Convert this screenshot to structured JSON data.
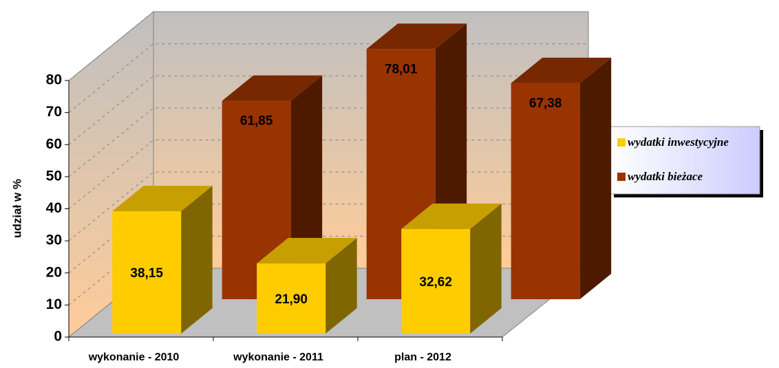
{
  "chart_data": {
    "type": "bar3d",
    "y_label": "udział w %",
    "categories": [
      "wykonanie - 2010",
      "wykonanie - 2011",
      "plan - 2012"
    ],
    "series": [
      {
        "name": "wydatki inwestycyjne",
        "color": "#ffcc00",
        "values": [
          38.15,
          21.9,
          32.62
        ],
        "value_labels": [
          "38,15",
          "21,90",
          "32,62"
        ]
      },
      {
        "name": "wydatki bieżace",
        "color": "#993300",
        "values": [
          61.85,
          78.01,
          67.38
        ],
        "value_labels": [
          "61,85",
          "78,01",
          "67,38"
        ]
      }
    ],
    "ylim": [
      0,
      80
    ],
    "yticks": [
      0,
      10,
      20,
      30,
      40,
      50,
      60,
      70,
      80
    ],
    "grid": true,
    "legend": "right"
  }
}
